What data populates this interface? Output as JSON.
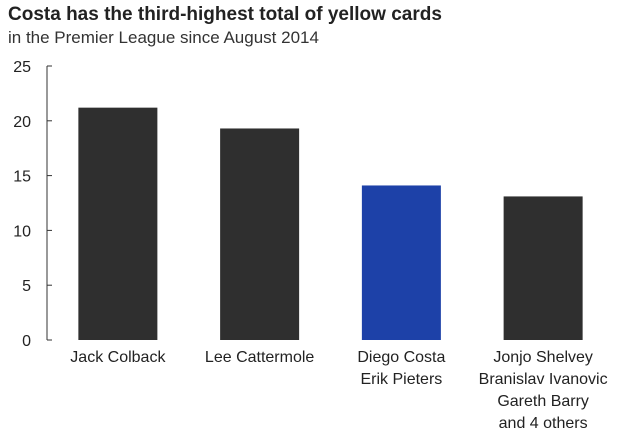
{
  "chart_data": {
    "type": "bar",
    "title": "Costa has the third-highest total of yellow cards",
    "subtitle": "in the Premier League since August 2014",
    "categories": [
      [
        "Jack Colback"
      ],
      [
        "Lee Cattermole"
      ],
      [
        "Diego Costa",
        "Erik Pieters"
      ],
      [
        "Jonjo Shelvey",
        "Branislav Ivanovic",
        "Gareth Barry",
        "and 4 others"
      ]
    ],
    "values": [
      21.2,
      19.3,
      14.1,
      13.1
    ],
    "highlight_index": 2,
    "colors": {
      "default": "#2f2f2f",
      "highlight": "#1d41a8",
      "axis": "#333333"
    },
    "ylim": [
      0,
      25
    ],
    "yticks": [
      "0",
      "5",
      "10",
      "15",
      "20",
      "25"
    ],
    "xlabel": "",
    "ylabel": "",
    "grid": false
  }
}
